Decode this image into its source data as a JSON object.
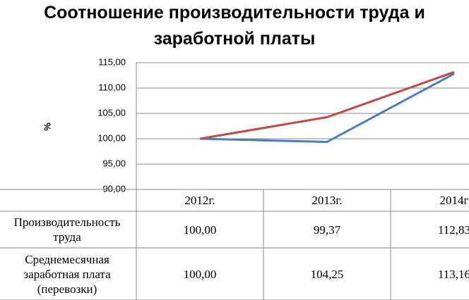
{
  "chart_data": {
    "type": "line",
    "title": "Соотношение производительности труда и заработной платы",
    "y_label": "%",
    "categories": [
      "2012г.",
      "2013г.",
      "2014г"
    ],
    "series": [
      {
        "name": "Производительность труда",
        "color": "#4a7ebb",
        "values": [
          100,
          99.37,
          112.83
        ],
        "value_labels": [
          "100,00",
          "99,37",
          "112,83"
        ]
      },
      {
        "name": "Среднемесячная заработная плата (перевозки)",
        "color": "#be4b48",
        "values": [
          100,
          104.25,
          113.16
        ],
        "value_labels": [
          "100,00",
          "104,25",
          "113,16"
        ]
      }
    ],
    "ylim": [
      90,
      115
    ],
    "yticks": [
      {
        "value": 90,
        "label": "90,00"
      },
      {
        "value": 95,
        "label": "95,00"
      },
      {
        "value": 100,
        "label": "100,00"
      },
      {
        "value": 105,
        "label": "105,00"
      },
      {
        "value": 110,
        "label": "110,00"
      },
      {
        "value": 115,
        "label": "115,00"
      }
    ],
    "grid": true
  }
}
